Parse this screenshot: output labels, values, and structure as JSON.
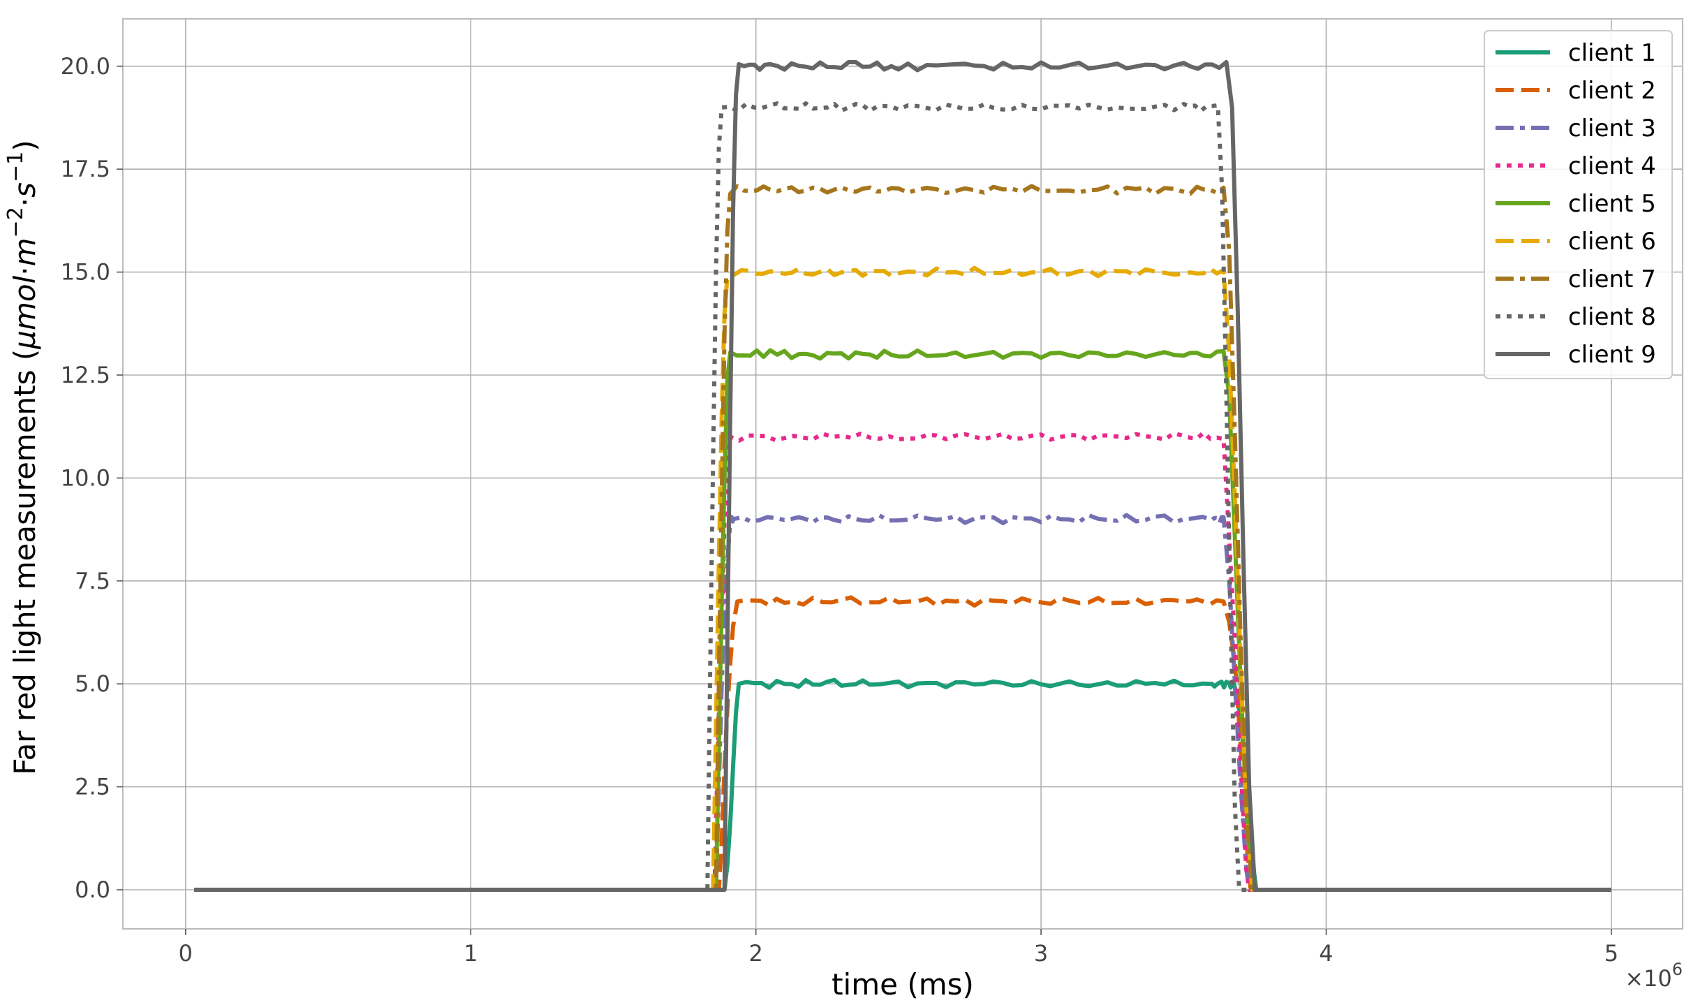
{
  "chart_data": {
    "type": "line",
    "xlabel": "time (ms)",
    "ylabel_prefix": "Far red light measurements (",
    "ylabel_unit": {
      "mu": "μ",
      "mol": "mol",
      "dot1": "·",
      "m": "m",
      "m_exp": "−2",
      "dot2": "·",
      "s": "s",
      "s_exp": "−1"
    },
    "ylabel_suffix": ")",
    "x_offset_label": {
      "base": "×10",
      "exp": "6"
    },
    "xlim": [
      -220000,
      5250000
    ],
    "ylim": [
      -0.95,
      21.15
    ],
    "xticks": [
      0,
      1,
      2,
      3,
      4,
      5
    ],
    "xtick_labels": [
      "0",
      "1",
      "2",
      "3",
      "4",
      "5"
    ],
    "yticks": [
      0,
      2.5,
      5,
      7.5,
      10,
      12.5,
      15,
      17.5,
      20
    ],
    "ytick_labels": [
      "0.0",
      "2.5",
      "5.0",
      "7.5",
      "10.0",
      "12.5",
      "15.0",
      "17.5",
      "20.0"
    ],
    "grid": true,
    "legend_position": "top-right",
    "series": [
      {
        "name": "client 1",
        "color": "#1b9e77",
        "dash": "solid",
        "level": 5,
        "points": [
          [
            30000,
            0
          ],
          [
            1890000,
            0
          ],
          [
            1900000,
            0.6
          ],
          [
            1910000,
            1.6
          ],
          [
            1920000,
            3.0
          ],
          [
            1930000,
            4.3
          ],
          [
            1940000,
            5.0
          ],
          [
            2100000,
            5.0
          ],
          [
            2250000,
            5.05
          ],
          [
            2400000,
            4.98
          ],
          [
            2600000,
            5.02
          ],
          [
            2800000,
            5.0
          ],
          [
            3000000,
            4.99
          ],
          [
            3200000,
            4.99
          ],
          [
            3400000,
            5.02
          ],
          [
            3600000,
            5.0
          ],
          [
            3650000,
            5.05
          ],
          [
            3680000,
            4.9
          ],
          [
            3700000,
            4.2
          ],
          [
            3720000,
            2.6
          ],
          [
            3740000,
            0.8
          ],
          [
            3755000,
            0
          ],
          [
            5000000,
            0
          ]
        ]
      },
      {
        "name": "client 2",
        "color": "#d95f02",
        "dash": "dashed",
        "level": 7,
        "points": [
          [
            30000,
            0
          ],
          [
            1870000,
            0
          ],
          [
            1880000,
            1.2
          ],
          [
            1890000,
            3.0
          ],
          [
            1900000,
            4.4
          ],
          [
            1910000,
            5.5
          ],
          [
            1920000,
            6.4
          ],
          [
            1935000,
            7.0
          ],
          [
            2100000,
            6.97
          ],
          [
            2300000,
            7.04
          ],
          [
            2500000,
            6.98
          ],
          [
            2700000,
            7.0
          ],
          [
            2900000,
            6.95
          ],
          [
            3100000,
            7.02
          ],
          [
            3300000,
            6.97
          ],
          [
            3500000,
            7.0
          ],
          [
            3640000,
            7.0
          ],
          [
            3660000,
            6.5
          ],
          [
            3680000,
            5.5
          ],
          [
            3700000,
            3.5
          ],
          [
            3720000,
            1.2
          ],
          [
            3735000,
            0
          ],
          [
            5000000,
            0
          ]
        ]
      },
      {
        "name": "client 3",
        "color": "#7570b3",
        "dash": "dashdot",
        "level": 9,
        "points": [
          [
            30000,
            0
          ],
          [
            1860000,
            0
          ],
          [
            1870000,
            2.5
          ],
          [
            1880000,
            5.0
          ],
          [
            1890000,
            6.8
          ],
          [
            1900000,
            8.0
          ],
          [
            1910000,
            8.9
          ],
          [
            1920000,
            9.0
          ],
          [
            2100000,
            8.98
          ],
          [
            2250000,
            9.04
          ],
          [
            2400000,
            8.96
          ],
          [
            2600000,
            9.02
          ],
          [
            2800000,
            9.05
          ],
          [
            3000000,
            8.93
          ],
          [
            3200000,
            9.01
          ],
          [
            3400000,
            9.06
          ],
          [
            3600000,
            8.98
          ],
          [
            3640000,
            9.05
          ],
          [
            3660000,
            7.5
          ],
          [
            3680000,
            5.0
          ],
          [
            3700000,
            2.5
          ],
          [
            3720000,
            0.5
          ],
          [
            3730000,
            0
          ],
          [
            5000000,
            0
          ]
        ]
      },
      {
        "name": "client 4",
        "color": "#e7298a",
        "dash": "dotted",
        "level": 11,
        "points": [
          [
            30000,
            0
          ],
          [
            1855000,
            0
          ],
          [
            1865000,
            3.0
          ],
          [
            1875000,
            5.5
          ],
          [
            1885000,
            7.6
          ],
          [
            1890000,
            9.0
          ],
          [
            1900000,
            10.5
          ],
          [
            1910000,
            11.0
          ],
          [
            2100000,
            10.97
          ],
          [
            2300000,
            11.02
          ],
          [
            2500000,
            10.94
          ],
          [
            2700000,
            11.03
          ],
          [
            2900000,
            10.95
          ],
          [
            3100000,
            11.04
          ],
          [
            3300000,
            10.97
          ],
          [
            3500000,
            11.02
          ],
          [
            3640000,
            10.95
          ],
          [
            3660000,
            8.5
          ],
          [
            3680000,
            6.0
          ],
          [
            3700000,
            3.0
          ],
          [
            3720000,
            0.5
          ],
          [
            3730000,
            0
          ],
          [
            5000000,
            0
          ]
        ]
      },
      {
        "name": "client 5",
        "color": "#66a61e",
        "dash": "solid",
        "level": 13,
        "points": [
          [
            30000,
            0
          ],
          [
            1860000,
            0
          ],
          [
            1870000,
            3.5
          ],
          [
            1880000,
            7.0
          ],
          [
            1890000,
            10.0
          ],
          [
            1900000,
            12.4
          ],
          [
            1910000,
            13.05
          ],
          [
            2050000,
            13.1
          ],
          [
            2200000,
            12.98
          ],
          [
            2350000,
            13.05
          ],
          [
            2500000,
            12.95
          ],
          [
            2700000,
            13.05
          ],
          [
            2900000,
            13.02
          ],
          [
            3100000,
            12.98
          ],
          [
            3300000,
            13.05
          ],
          [
            3500000,
            12.97
          ],
          [
            3640000,
            13.08
          ],
          [
            3660000,
            12.0
          ],
          [
            3680000,
            8.5
          ],
          [
            3700000,
            5.0
          ],
          [
            3720000,
            2.0
          ],
          [
            3740000,
            0
          ],
          [
            5000000,
            0
          ]
        ]
      },
      {
        "name": "client 6",
        "color": "#e6ab02",
        "dash": "dashed",
        "level": 15,
        "points": [
          [
            30000,
            0
          ],
          [
            1850000,
            0
          ],
          [
            1860000,
            4.0
          ],
          [
            1870000,
            8.0
          ],
          [
            1880000,
            11.5
          ],
          [
            1890000,
            14.0
          ],
          [
            1900000,
            14.9
          ],
          [
            2050000,
            15.02
          ],
          [
            2200000,
            14.94
          ],
          [
            2350000,
            15.05
          ],
          [
            2500000,
            14.97
          ],
          [
            2700000,
            15.0
          ],
          [
            2900000,
            15.06
          ],
          [
            3100000,
            14.95
          ],
          [
            3300000,
            15.02
          ],
          [
            3500000,
            14.96
          ],
          [
            3640000,
            15.05
          ],
          [
            3660000,
            13.0
          ],
          [
            3680000,
            9.5
          ],
          [
            3700000,
            5.5
          ],
          [
            3720000,
            2.0
          ],
          [
            3740000,
            0
          ],
          [
            5000000,
            0
          ]
        ]
      },
      {
        "name": "client 7",
        "color": "#a6761d",
        "dash": "dashdot",
        "level": 17,
        "points": [
          [
            30000,
            0
          ],
          [
            1860000,
            0
          ],
          [
            1870000,
            5.0
          ],
          [
            1880000,
            9.5
          ],
          [
            1890000,
            13.5
          ],
          [
            1900000,
            16.0
          ],
          [
            1910000,
            16.9
          ],
          [
            2050000,
            17.0
          ],
          [
            2200000,
            17.05
          ],
          [
            2350000,
            16.95
          ],
          [
            2500000,
            17.03
          ],
          [
            2700000,
            16.97
          ],
          [
            2900000,
            17.02
          ],
          [
            3100000,
            16.98
          ],
          [
            3300000,
            17.05
          ],
          [
            3500000,
            16.95
          ],
          [
            3640000,
            17.05
          ],
          [
            3660000,
            15.5
          ],
          [
            3680000,
            11.0
          ],
          [
            3700000,
            6.0
          ],
          [
            3720000,
            2.0
          ],
          [
            3740000,
            0
          ],
          [
            5000000,
            0
          ]
        ]
      },
      {
        "name": "client 8",
        "color": "#666666",
        "dash": "dotted",
        "level": 19,
        "points": [
          [
            30000,
            0
          ],
          [
            1830000,
            0
          ],
          [
            1840000,
            5.5
          ],
          [
            1850000,
            10.5
          ],
          [
            1860000,
            15.0
          ],
          [
            1870000,
            18.0
          ],
          [
            1880000,
            19.0
          ],
          [
            2050000,
            19.05
          ],
          [
            2200000,
            18.97
          ],
          [
            2350000,
            19.08
          ],
          [
            2500000,
            18.95
          ],
          [
            2700000,
            19.02
          ],
          [
            2900000,
            18.96
          ],
          [
            3100000,
            19.05
          ],
          [
            3300000,
            18.97
          ],
          [
            3500000,
            19.08
          ],
          [
            3620000,
            19.05
          ],
          [
            3635000,
            17.0
          ],
          [
            3650000,
            12.0
          ],
          [
            3665000,
            6.5
          ],
          [
            3680000,
            2.0
          ],
          [
            3695000,
            0
          ],
          [
            5000000,
            0
          ]
        ]
      },
      {
        "name": "client 9",
        "color": "#666666",
        "dash": "solid",
        "level": 20,
        "points": [
          [
            30000,
            0
          ],
          [
            1890000,
            0
          ],
          [
            1900000,
            6.0
          ],
          [
            1910000,
            11.5
          ],
          [
            1920000,
            16.5
          ],
          [
            1930000,
            19.3
          ],
          [
            1940000,
            20.05
          ],
          [
            2050000,
            20.05
          ],
          [
            2200000,
            19.95
          ],
          [
            2350000,
            20.1
          ],
          [
            2500000,
            19.92
          ],
          [
            2700000,
            20.05
          ],
          [
            2900000,
            19.97
          ],
          [
            3100000,
            20.03
          ],
          [
            3300000,
            19.95
          ],
          [
            3500000,
            20.08
          ],
          [
            3650000,
            20.1
          ],
          [
            3670000,
            19.0
          ],
          [
            3690000,
            14.0
          ],
          [
            3710000,
            8.0
          ],
          [
            3730000,
            2.5
          ],
          [
            3750000,
            0
          ],
          [
            5000000,
            0
          ]
        ]
      }
    ]
  }
}
